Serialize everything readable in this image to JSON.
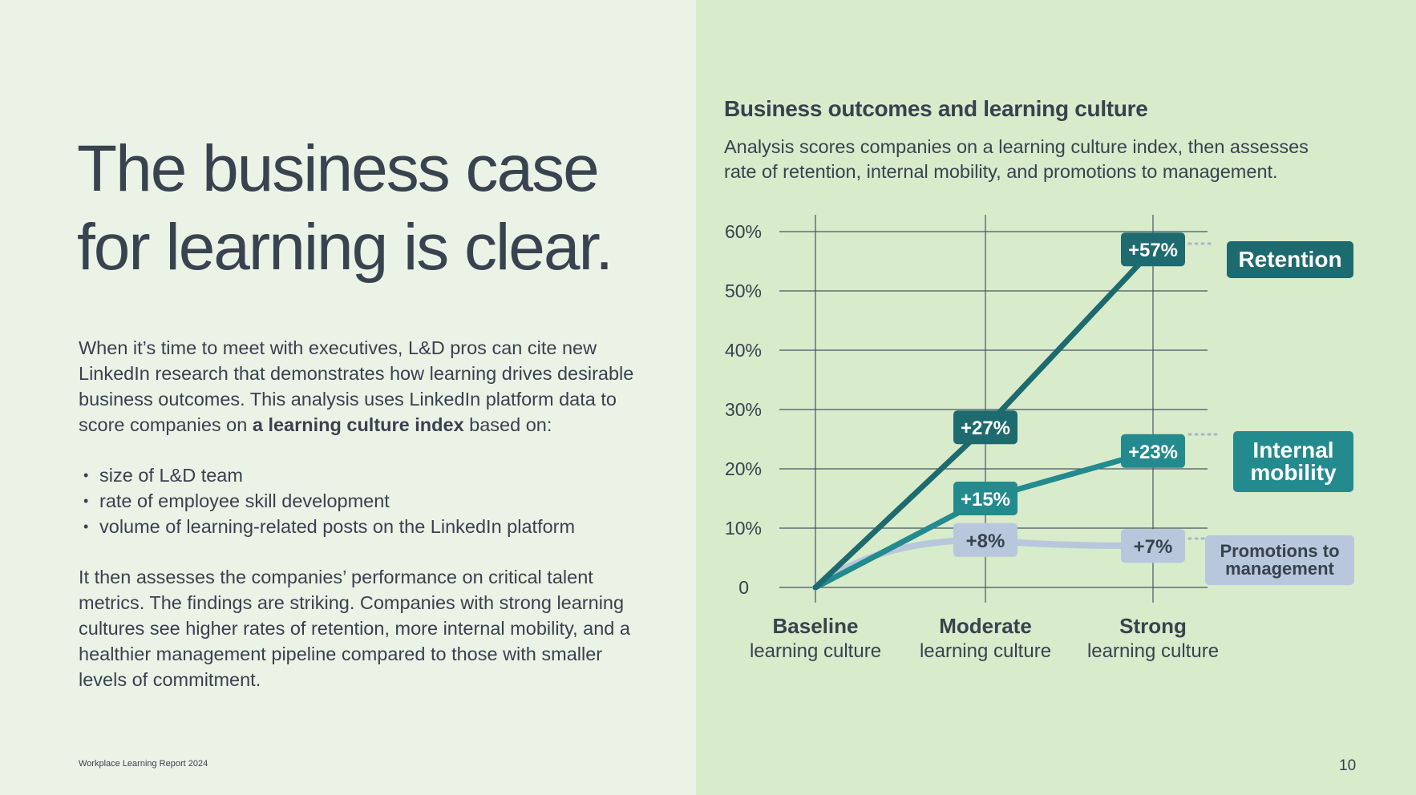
{
  "left": {
    "headline": "The business case for learning is clear.",
    "intro_before": "When it’s time to meet with executives, L&D pros can cite new LinkedIn research that demonstrates how learning drives desirable business outcomes. This analysis uses LinkedIn platform data to score companies on ",
    "intro_bold": "a learning culture index",
    "intro_after": " based on:",
    "bullets": [
      "size of L&D team",
      "rate of employee skill development",
      "volume of learning-related posts on the LinkedIn platform"
    ],
    "closing": "It then assesses the companies’ performance on critical talent metrics. The findings are striking. Companies with strong learning cultures see higher rates of retention, more internal mobility, and a healthier management pipeline compared to those with smaller levels of commitment.",
    "footer": "Workplace Learning Report 2024",
    "page_number": "10"
  },
  "chart_data": {
    "type": "line",
    "title": "Business outcomes and learning culture",
    "subtitle": "Analysis scores companies on a learning culture index, then assesses rate of retention, internal mobility, and promotions to management.",
    "categories": [
      {
        "bold": "Baseline",
        "rest": "learning culture"
      },
      {
        "bold": "Moderate",
        "rest": "learning culture"
      },
      {
        "bold": "Strong",
        "rest": "learning culture"
      }
    ],
    "y_ticks": [
      {
        "value": 0,
        "label": "0"
      },
      {
        "value": 10,
        "label": "10%"
      },
      {
        "value": 20,
        "label": "20%"
      },
      {
        "value": 30,
        "label": "30%"
      },
      {
        "value": 40,
        "label": "40%"
      },
      {
        "value": 50,
        "label": "50%"
      },
      {
        "value": 60,
        "label": "60%"
      }
    ],
    "ylim": [
      0,
      60
    ],
    "grid": true,
    "series": [
      {
        "name": "Retention",
        "values": [
          0,
          27,
          57
        ],
        "labels": [
          "",
          "+27%",
          "+57%"
        ],
        "color": "#1d6a6f",
        "label_text": "#ffffff"
      },
      {
        "name": "Internal mobility",
        "values": [
          0,
          15,
          23
        ],
        "labels": [
          "",
          "+15%",
          "+23%"
        ],
        "color": "#238a8e",
        "label_text": "#ffffff"
      },
      {
        "name": "Promotions to management",
        "values": [
          0,
          8,
          7
        ],
        "labels": [
          "",
          "+8%",
          "+7%"
        ],
        "color": "#b8c7db",
        "label_text": "#38424f"
      }
    ]
  },
  "legend": {
    "retention": "Retention",
    "mobility_line1": "Internal",
    "mobility_line2": "mobility",
    "promotions_line1": "Promotions to",
    "promotions_line2": "management"
  },
  "colors": {
    "left_bg": "#eaf3e6",
    "right_bg": "#d8ebcb",
    "grid": "#4a5361"
  }
}
